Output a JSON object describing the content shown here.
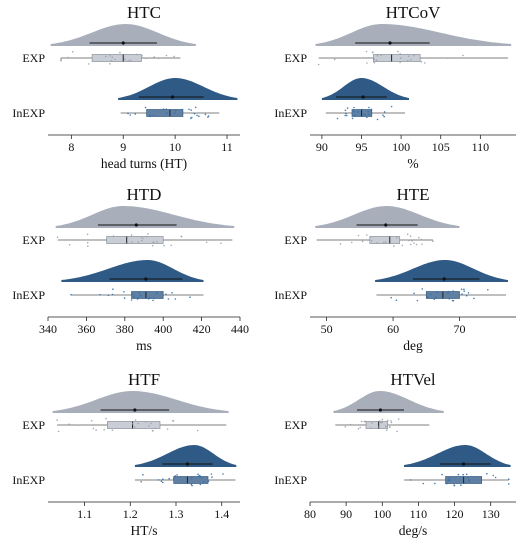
{
  "figure": {
    "colors": {
      "EXP": "#a9afba",
      "InEXP": "#2e5a85",
      "EXP_box": "#c9ced6",
      "InEXP_box": "#5f7fa3",
      "axis": "#222222",
      "jitter_EXP": "#9aa0aa",
      "jitter_InEXP": "#2f6ea5"
    }
  },
  "chart_data": [
    {
      "id": "htc",
      "type": "raincloud",
      "title": "HTC",
      "xlabel": "head turns (HT)",
      "ylabel": "",
      "xlim": [
        7.55,
        11.25
      ],
      "xticks": [
        8,
        9,
        10,
        11
      ],
      "groups": [
        "EXP",
        "InEXP"
      ],
      "grid": false,
      "series": [
        {
          "name": "EXP",
          "mean": 9.0,
          "sd_range": [
            8.35,
            9.65
          ],
          "box": {
            "min": 7.8,
            "q1": 8.4,
            "median": 9.0,
            "q3": 9.35,
            "max": 10.1
          },
          "density_range": [
            7.6,
            10.4
          ],
          "density_peak": 9.05
        },
        {
          "name": "InEXP",
          "mean": 9.95,
          "sd_range": [
            9.3,
            10.55
          ],
          "box": {
            "min": 8.95,
            "q1": 9.45,
            "median": 9.9,
            "q3": 10.15,
            "max": 10.85
          },
          "density_range": [
            8.9,
            11.2
          ],
          "density_peak": 10.0
        }
      ]
    },
    {
      "id": "htcov",
      "type": "raincloud",
      "title": "HTCoV",
      "xlabel": "%",
      "ylabel": "",
      "xlim": [
        88.5,
        114.5
      ],
      "xticks": [
        90,
        95,
        100,
        105,
        110
      ],
      "groups": [
        "EXP",
        "InEXP"
      ],
      "grid": false,
      "series": [
        {
          "name": "EXP",
          "mean": 98.6,
          "sd_range": [
            94.2,
            103.6
          ],
          "box": {
            "min": 89.6,
            "q1": 96.5,
            "median": 98.8,
            "q3": 102.4,
            "max": 113.5
          },
          "density_range": [
            89.2,
            113.9
          ],
          "density_peak": 97.5
        },
        {
          "name": "InEXP",
          "mean": 95.2,
          "sd_range": [
            91.8,
            98.2
          ],
          "box": {
            "min": 90.5,
            "q1": 93.8,
            "median": 95.0,
            "q3": 96.3,
            "max": 100.5
          },
          "density_range": [
            90.0,
            101.0
          ],
          "density_peak": 95.0
        }
      ]
    },
    {
      "id": "htd",
      "type": "raincloud",
      "title": "HTD",
      "xlabel": "ms",
      "ylabel": "",
      "xlim": [
        340,
        440
      ],
      "xticks": [
        340,
        360,
        380,
        400,
        420,
        440
      ],
      "groups": [
        "EXP",
        "InEXP"
      ],
      "grid": false,
      "series": [
        {
          "name": "EXP",
          "mean": 386.0,
          "sd_range": [
            366.0,
            407.0
          ],
          "box": {
            "min": 345.0,
            "q1": 370.5,
            "median": 381.0,
            "q3": 400.0,
            "max": 436.0
          },
          "density_range": [
            344.0,
            437.0
          ],
          "density_peak": 379.0
        },
        {
          "name": "InEXP",
          "mean": 391.0,
          "sd_range": [
            372.0,
            410.0
          ],
          "box": {
            "min": 352.0,
            "q1": 383.5,
            "median": 391.0,
            "q3": 400.0,
            "max": 421.0
          },
          "density_range": [
            347.0,
            421.0
          ],
          "density_peak": 392.0
        }
      ]
    },
    {
      "id": "hte",
      "type": "raincloud",
      "title": "HTE",
      "xlabel": "deg",
      "ylabel": "",
      "xlim": [
        47.5,
        78.5
      ],
      "xticks": [
        50,
        60,
        70
      ],
      "groups": [
        "EXP",
        "InEXP"
      ],
      "grid": false,
      "series": [
        {
          "name": "EXP",
          "mean": 58.9,
          "sd_range": [
            54.5,
            63.7
          ],
          "box": {
            "min": 48.5,
            "q1": 56.5,
            "median": 59.5,
            "q3": 61.0,
            "max": 66.0
          },
          "density_range": [
            48.3,
            70.0
          ],
          "density_peak": 59.0
        },
        {
          "name": "InEXP",
          "mean": 67.7,
          "sd_range": [
            63.0,
            73.0
          ],
          "box": {
            "min": 57.5,
            "q1": 65.0,
            "median": 67.5,
            "q3": 70.0,
            "max": 77.0
          },
          "density_range": [
            57.3,
            77.3
          ],
          "density_peak": 67.8
        }
      ]
    },
    {
      "id": "htf",
      "type": "raincloud",
      "title": "HTF",
      "xlabel": "HT/s",
      "ylabel": "",
      "xlim": [
        1.02,
        1.44
      ],
      "xticks": [
        1.1,
        1.2,
        1.3,
        1.4
      ],
      "groups": [
        "EXP",
        "InEXP"
      ],
      "grid": false,
      "series": [
        {
          "name": "EXP",
          "mean": 1.21,
          "sd_range": [
            1.135,
            1.285
          ],
          "box": {
            "min": 1.04,
            "q1": 1.15,
            "median": 1.205,
            "q3": 1.265,
            "max": 1.41
          },
          "density_range": [
            1.03,
            1.415
          ],
          "density_peak": 1.205
        },
        {
          "name": "InEXP",
          "mean": 1.325,
          "sd_range": [
            1.27,
            1.38
          ],
          "box": {
            "min": 1.21,
            "q1": 1.295,
            "median": 1.325,
            "q3": 1.37,
            "max": 1.43
          },
          "density_range": [
            1.21,
            1.432
          ],
          "density_peak": 1.34
        }
      ]
    },
    {
      "id": "htvel",
      "type": "raincloud",
      "title": "HTVel",
      "xlabel": "deg/s",
      "ylabel": "",
      "xlim": [
        80,
        137
      ],
      "xticks": [
        80,
        90,
        100,
        110,
        120,
        130
      ],
      "groups": [
        "EXP",
        "InEXP"
      ],
      "grid": false,
      "series": [
        {
          "name": "EXP",
          "mean": 99.5,
          "sd_range": [
            93.0,
            106.0
          ],
          "box": {
            "min": 87.0,
            "q1": 95.5,
            "median": 99.0,
            "q3": 101.5,
            "max": 113.0
          },
          "density_range": [
            86.5,
            117.0
          ],
          "density_peak": 99.3
        },
        {
          "name": "InEXP",
          "mean": 122.5,
          "sd_range": [
            116.0,
            130.0
          ],
          "box": {
            "min": 106.0,
            "q1": 117.5,
            "median": 122.5,
            "q3": 127.5,
            "max": 135.0
          },
          "density_range": [
            106.0,
            135.5
          ],
          "density_peak": 123.0
        }
      ]
    }
  ]
}
